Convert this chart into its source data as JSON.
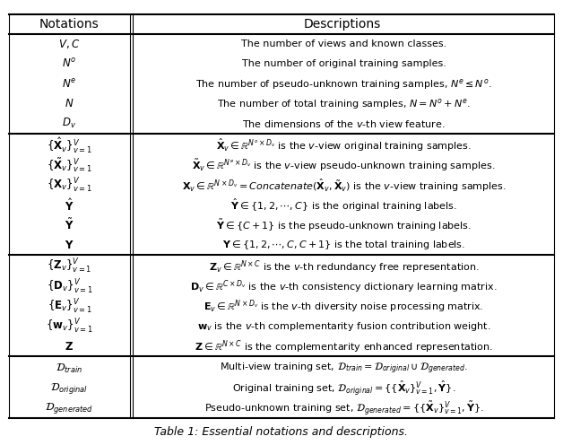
{
  "title": "Table 1: Essential notations and descriptions.",
  "header": [
    "Notations",
    "Descriptions"
  ],
  "sections": [
    {
      "rows": [
        [
          "$V, C$",
          "The number of views and known classes."
        ],
        [
          "$N^o$",
          "The number of original training samples."
        ],
        [
          "$N^e$",
          "The number of pseudo-unknown training samples, $N^e \\leq N^o$."
        ],
        [
          "$N$",
          "The number of total training samples, $N = N^o + N^e$."
        ],
        [
          "$D_v$",
          "The dimensions of the $v$-th view feature."
        ]
      ]
    },
    {
      "rows": [
        [
          "$\\{\\hat{\\mathbf{X}}_v\\}_{v=1}^V$",
          "$\\hat{\\mathbf{X}}_v \\in \\mathbb{R}^{N^o \\times D_v}$ is the $v$-view original training samples."
        ],
        [
          "$\\{\\tilde{\\mathbf{X}}_v\\}_{v=1}^V$",
          "$\\tilde{\\mathbf{X}}_v \\in \\mathbb{R}^{N^e \\times D_v}$ is the $v$-view pseudo-unknown training samples."
        ],
        [
          "$\\{\\mathbf{X}_v\\}_{v=1}^V$",
          "$\\mathbf{X}_v \\in \\mathbb{R}^{N \\times D_v} = \\mathit{Concatenate}(\\hat{\\mathbf{X}}_v, \\tilde{\\mathbf{X}}_v)$ is the $v$-view training samples."
        ],
        [
          "$\\hat{\\mathbf{Y}}$",
          "$\\hat{\\mathbf{Y}} \\in \\{1, 2, \\cdots, C\\}$ is the original training labels."
        ],
        [
          "$\\tilde{\\mathbf{Y}}$",
          "$\\tilde{\\mathbf{Y}} \\in \\{C+1\\}$ is the pseudo-unknown training labels."
        ],
        [
          "$\\mathbf{Y}$",
          "$\\mathbf{Y} \\in \\{1, 2, \\cdots, C, C+1\\}$ is the total training labels."
        ]
      ]
    },
    {
      "rows": [
        [
          "$\\{\\mathbf{Z}_v\\}_{v=1}^V$",
          "$\\mathbf{Z}_v \\in \\mathbb{R}^{N \\times C}$ is the $v$-th redundancy free representation."
        ],
        [
          "$\\{\\mathbf{D}_v\\}_{v=1}^V$",
          "$\\mathbf{D}_v \\in \\mathbb{R}^{C \\times D_v}$ is the $v$-th consistency dictionary learning matrix."
        ],
        [
          "$\\{\\mathbf{E}_v\\}_{v=1}^V$",
          "$\\mathbf{E}_v \\in \\mathbb{R}^{N \\times D_v}$ is the $v$-th diversity noise processing matrix."
        ],
        [
          "$\\{\\mathbf{w}_v\\}_{v=1}^V$",
          "$\\mathbf{w}_v$ is the $v$-th complementarity fusion contribution weight."
        ],
        [
          "$\\mathbf{Z}$",
          "$\\mathbf{Z} \\in \\mathbb{R}^{N \\times C}$ is the complementarity enhanced representation."
        ]
      ]
    },
    {
      "rows": [
        [
          "$\\mathcal{D}_{train}$",
          "Multi-view training set, $\\mathcal{D}_{train} = \\mathcal{D}_{original} \\cup \\mathcal{D}_{generated}$."
        ],
        [
          "$\\mathcal{D}_{original}$",
          "Original training set, $\\mathcal{D}_{original} = \\{\\{\\hat{\\mathbf{X}}_v\\}_{v=1}^V, \\hat{\\mathbf{Y}}\\}$."
        ],
        [
          "$\\mathcal{D}_{generated}$",
          "Pseudo-unknown training set, $\\mathcal{D}_{generated} = \\{\\{\\tilde{\\mathbf{X}}_v\\}_{v=1}^V, \\tilde{\\mathbf{Y}}\\}$."
        ]
      ]
    }
  ],
  "bg_color": "#ffffff",
  "text_color": "#000000",
  "line_color": "#000000",
  "fontsize": 8.5,
  "header_fontsize": 10
}
